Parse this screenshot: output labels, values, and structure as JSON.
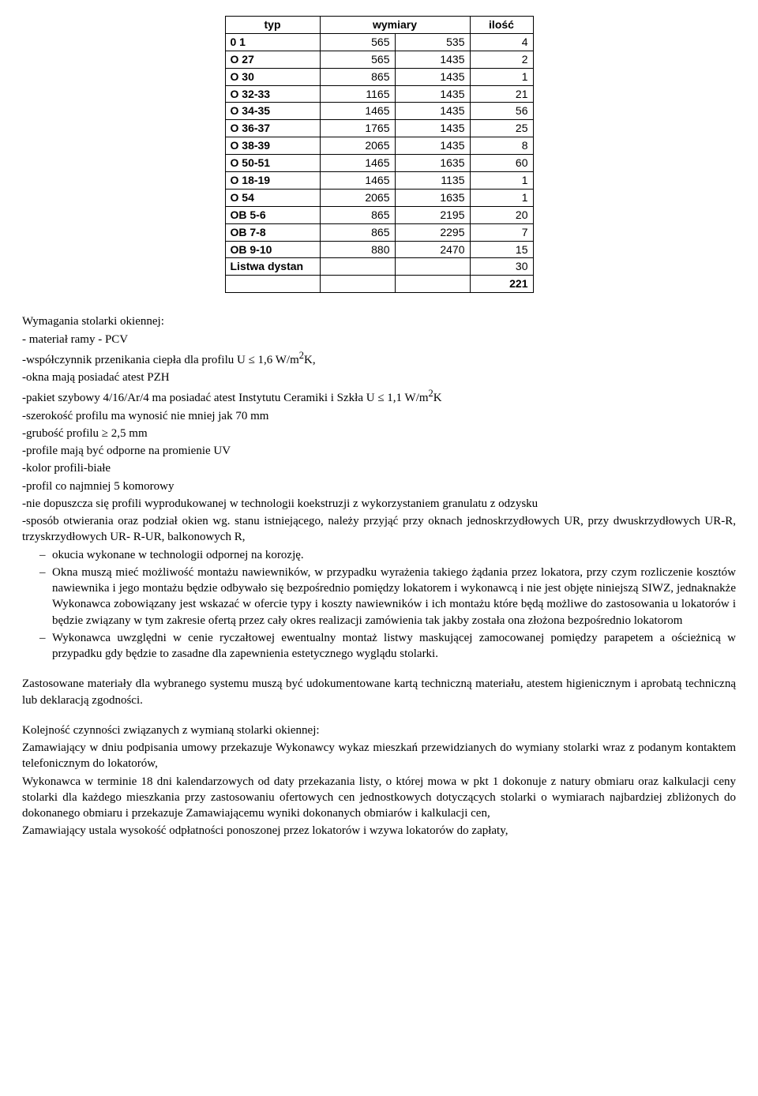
{
  "table": {
    "headers": {
      "typ": "typ",
      "wymiary": "wymiary",
      "ilosc": "ilość"
    },
    "rows": [
      {
        "typ": "0 1",
        "w1": "565",
        "w2": "535",
        "il": "4"
      },
      {
        "typ": "O 27",
        "w1": "565",
        "w2": "1435",
        "il": "2"
      },
      {
        "typ": "O 30",
        "w1": "865",
        "w2": "1435",
        "il": "1"
      },
      {
        "typ": "O 32-33",
        "w1": "1165",
        "w2": "1435",
        "il": "21"
      },
      {
        "typ": "O 34-35",
        "w1": "1465",
        "w2": "1435",
        "il": "56"
      },
      {
        "typ": "O 36-37",
        "w1": "1765",
        "w2": "1435",
        "il": "25"
      },
      {
        "typ": "O 38-39",
        "w1": "2065",
        "w2": "1435",
        "il": "8"
      },
      {
        "typ": "O 50-51",
        "w1": "1465",
        "w2": "1635",
        "il": "60"
      },
      {
        "typ": "O 18-19",
        "w1": "1465",
        "w2": "1135",
        "il": "1"
      },
      {
        "typ": "O 54",
        "w1": "2065",
        "w2": "1635",
        "il": "1"
      },
      {
        "typ": "OB 5-6",
        "w1": "865",
        "w2": "2195",
        "il": "20"
      },
      {
        "typ": "OB 7-8",
        "w1": "865",
        "w2": "2295",
        "il": "7"
      },
      {
        "typ": "OB 9-10",
        "w1": "880",
        "w2": "2470",
        "il": "15"
      }
    ],
    "listwa_label": "Listwa dystan",
    "listwa_value": "30",
    "total": "221"
  },
  "req": {
    "title": "Wymagania stolarki okiennej:",
    "l1": "- materiał ramy - PCV",
    "l2a": "-współczynnik przenikania ciepła dla profilu U ≤ 1,6 W/m",
    "l2b": "K,",
    "l3": "-okna mają posiadać atest PZH",
    "l4a": "-pakiet szybowy 4/16/Ar/4 ma posiadać atest Instytutu Ceramiki i Szkła U ≤ 1,1 W/m",
    "l4b": "K",
    "l5": "-szerokość profilu ma wynosić nie mniej jak 70 mm",
    "l6": "-grubość profilu ≥ 2,5 mm",
    "l7": "-profile  mają być odporne na promienie UV",
    "l8": "-kolor profili-białe",
    "l9": "-profil co najmniej 5 komorowy",
    "l10": "-nie dopuszcza się profili wyprodukowanej w technologii koekstruzji z wykorzystaniem granulatu z odzysku",
    "l11": "-sposób otwierania oraz podział okien wg. stanu istniejącego, należy przyjąć przy oknach jednoskrzydłowych UR, przy dwuskrzydłowych UR-R, trzyskrzydłowych UR- R-UR, balkonowych R,",
    "b1": "okucia wykonane w technologii odpornej na korozję.",
    "b2": "Okna muszą mieć możliwość montażu nawiewników, w przypadku wyrażenia takiego żądania przez lokatora, przy czym rozliczenie kosztów nawiewnika i jego montażu będzie odbywało się bezpośrednio pomiędzy lokatorem i wykonawcą i nie jest objęte niniejszą SIWZ, jednaknakże Wykonawca zobowiązany jest wskazać w ofercie typy i koszty nawiewników i ich montażu które będą możliwe do zastosowania u lokatorów i będzie  związany w tym zakresie ofertą przez cały okres realizacji zamówienia tak jakby została ona złożona bezpośrednio lokatorom",
    "b3": "Wykonawca uwzględni w cenie ryczałtowej ewentualny montaż listwy maskującej zamocowanej pomiędzy parapetem a ościeżnicą w przypadku gdy będzie to zasadne dla zapewnienia estetycznego wyglądu stolarki."
  },
  "para_mat": "Zastosowane materiały dla wybranego systemu muszą być udokumentowane kartą techniczną materiału, atestem higienicznym i aprobatą techniczną lub deklaracją zgodności.",
  "seq": {
    "title": "Kolejność czynności związanych z wymianą stolarki okiennej:",
    "p1": "Zamawiający w dniu  podpisania umowy przekazuje Wykonawcy wykaz mieszkań przewidzianych do wymiany stolarki wraz z podanym kontaktem telefonicznym do lokatorów,",
    "p2": "Wykonawca w terminie 18 dni kalendarzowych od daty przekazania listy, o której mowa w pkt 1 dokonuje z natury obmiaru oraz kalkulacji ceny stolarki dla każdego mieszkania przy zastosowaniu ofertowych cen jednostkowych dotyczących stolarki o wymiarach najbardziej zbliżonych do dokonanego obmiaru i przekazuje Zamawiającemu wyniki dokonanych obmiarów i kalkulacji cen,",
    "p3": "Zamawiający ustala wysokość odpłatności ponoszonej przez lokatorów i wzywa lokatorów do zapłaty,"
  },
  "sup2": "2"
}
